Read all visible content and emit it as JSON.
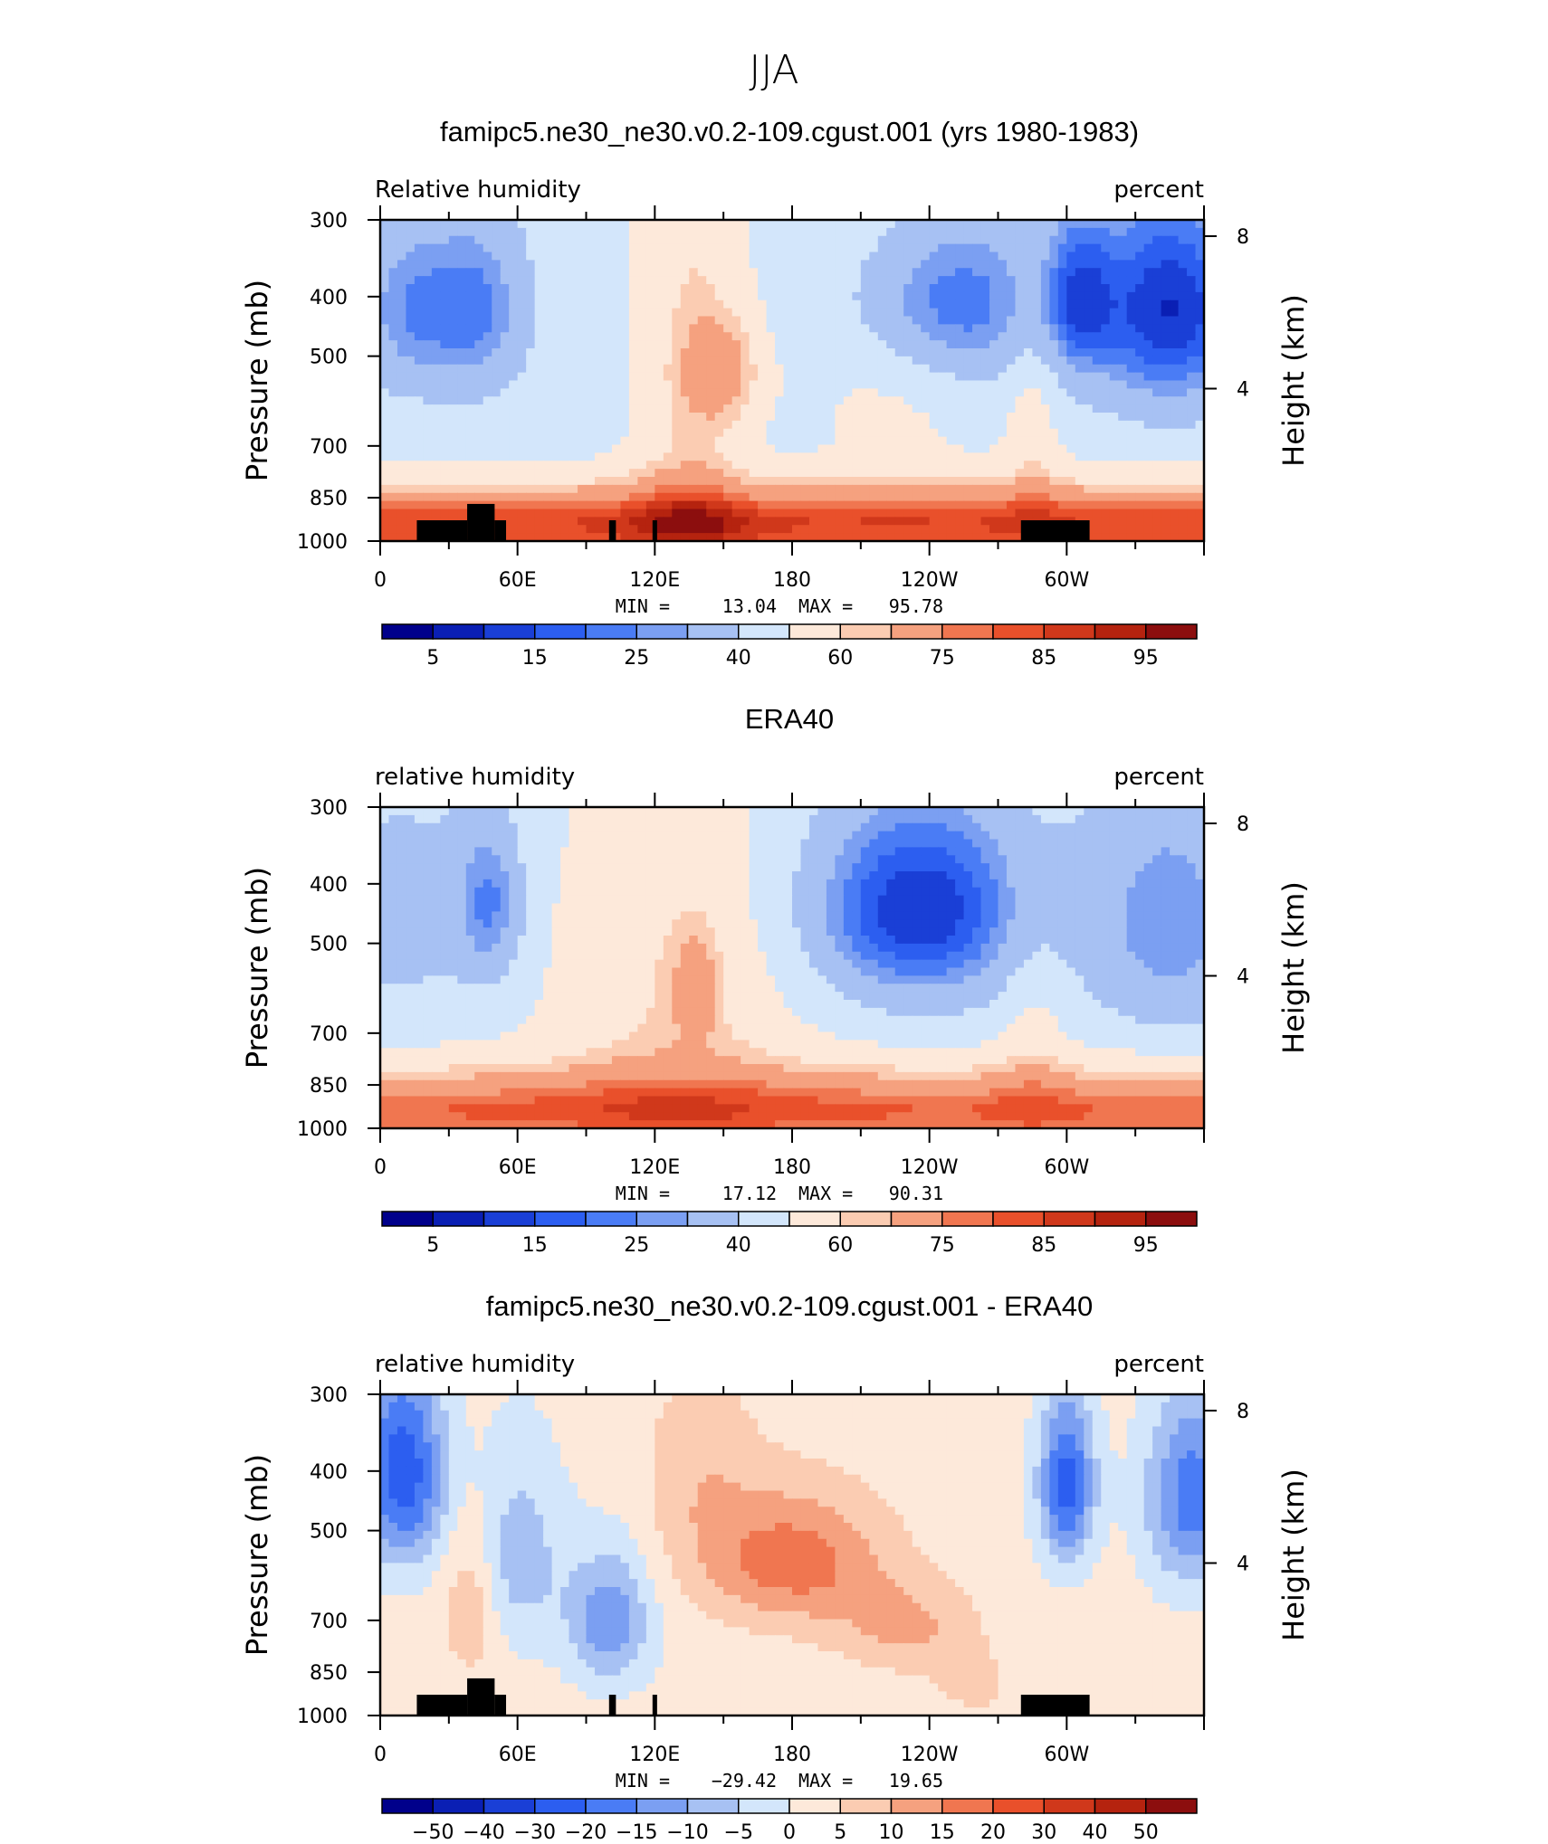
{
  "figure_title": "JJA",
  "chart_data": [
    {
      "type": "heatmap",
      "title": "famipc5.ne30_ne30.v0.2-109.cgust.001 (yrs 1980-1983)",
      "left_label": "Relative humidity",
      "right_label": "percent",
      "ylabel": "Pressure (mb)",
      "y2label": "Height (km)",
      "x_ticks": [
        "0",
        "60E",
        "120E",
        "180",
        "120W",
        "60W"
      ],
      "x_range": [
        0,
        360
      ],
      "y_ticks": [
        "300",
        "400",
        "500",
        "700",
        "850",
        "1000"
      ],
      "y_range": [
        300,
        1000
      ],
      "y2_ticks": [
        "8",
        "4"
      ],
      "stats": {
        "min_label": "MIN =",
        "min": "13.04",
        "max_label": "MAX =",
        "max": "95.78"
      },
      "colorbar_labels": [
        "5",
        "15",
        "25",
        "40",
        "60",
        "75",
        "85",
        "95"
      ],
      "field": "model",
      "terrain": true
    },
    {
      "type": "heatmap",
      "title": "ERA40",
      "left_label": "relative humidity",
      "right_label": "percent",
      "ylabel": "Pressure (mb)",
      "y2label": "Height (km)",
      "x_ticks": [
        "0",
        "60E",
        "120E",
        "180",
        "120W",
        "60W"
      ],
      "x_range": [
        0,
        360
      ],
      "y_ticks": [
        "300",
        "400",
        "500",
        "700",
        "850",
        "1000"
      ],
      "y_range": [
        300,
        1000
      ],
      "y2_ticks": [
        "8",
        "4"
      ],
      "stats": {
        "min_label": "MIN =",
        "min": "17.12",
        "max_label": "MAX =",
        "max": "90.31"
      },
      "colorbar_labels": [
        "5",
        "15",
        "25",
        "40",
        "60",
        "75",
        "85",
        "95"
      ],
      "field": "obs",
      "terrain": false
    },
    {
      "type": "heatmap",
      "title": "famipc5.ne30_ne30.v0.2-109.cgust.001 - ERA40",
      "left_label": "relative humidity",
      "right_label": "percent",
      "ylabel": "Pressure (mb)",
      "y2label": "Height (km)",
      "x_ticks": [
        "0",
        "60E",
        "120E",
        "180",
        "120W",
        "60W"
      ],
      "x_range": [
        0,
        360
      ],
      "y_ticks": [
        "300",
        "400",
        "500",
        "700",
        "850",
        "1000"
      ],
      "y_range": [
        300,
        1000
      ],
      "y2_ticks": [
        "8",
        "4"
      ],
      "stats": {
        "min_label": "MIN =",
        "min": "−29.42",
        "max_label": "MAX =",
        "max": "19.65"
      },
      "colorbar_labels": [
        "−50",
        "−40",
        "−30",
        "−20",
        "−15",
        "−10",
        "−5",
        "0",
        "5",
        "10",
        "15",
        "20",
        "30",
        "40",
        "50"
      ],
      "field": "diff",
      "terrain": true
    }
  ],
  "colors": {
    "levels_rh": [
      5,
      10,
      15,
      20,
      25,
      30,
      40,
      50,
      60,
      65,
      75,
      80,
      85,
      90,
      95
    ],
    "levels_diff": [
      -50,
      -40,
      -30,
      -20,
      -15,
      -10,
      -5,
      0,
      5,
      10,
      15,
      20,
      30,
      40,
      50
    ],
    "palette": [
      "#00008b",
      "#0a1fb4",
      "#1a3fd6",
      "#2c5ef0",
      "#4a7cf5",
      "#7b9ff2",
      "#a7c1f3",
      "#d3e6fb",
      "#fde9da",
      "#fbccb2",
      "#f5a17f",
      "#f07650",
      "#e9502b",
      "#d0381b",
      "#b5230f",
      "#8c0e0e"
    ],
    "terrain": "#000000"
  }
}
